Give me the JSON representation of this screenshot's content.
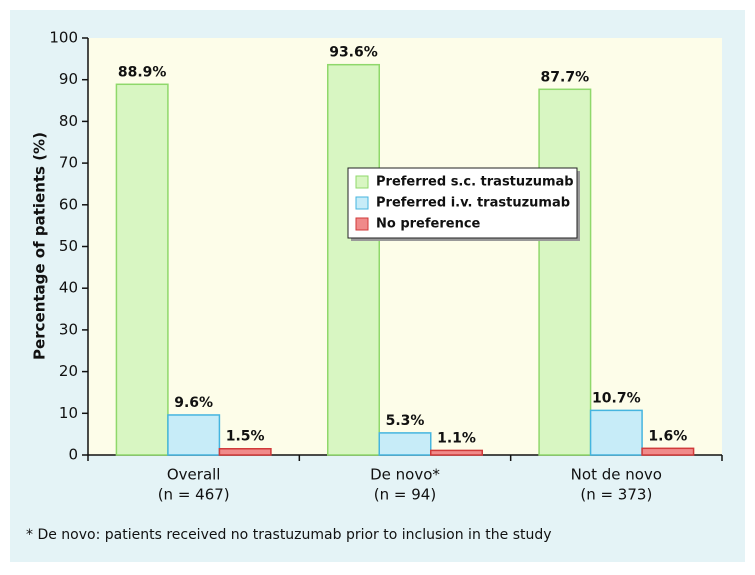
{
  "chart_data": {
    "type": "bar",
    "y_label": "Percentage of patients (%)",
    "categories": [
      "Overall",
      "De novo*",
      "Not de novo"
    ],
    "category_notes": [
      "(n = 467)",
      "(n = 94)",
      "(n = 373)"
    ],
    "series": [
      {
        "name": "Preferred s.c. trastuzumab",
        "color": "#d8f6c2",
        "values": [
          88.9,
          93.6,
          87.7
        ],
        "value_labels": [
          "88.9%",
          "93.6%",
          "87.7%"
        ]
      },
      {
        "name": "Preferred i.v. trastuzumab",
        "color": "#c7ecf8",
        "values": [
          9.6,
          5.3,
          10.7
        ],
        "value_labels": [
          "9.6%",
          "5.3%",
          "10.7%"
        ]
      },
      {
        "name": "No preference",
        "color": "#f08a8a",
        "values": [
          1.5,
          1.1,
          1.6
        ],
        "value_labels": [
          "1.5%",
          "1.1%",
          "1.6%"
        ]
      }
    ],
    "ylim": [
      0,
      100
    ],
    "yticks": [
      0,
      10,
      20,
      30,
      40,
      50,
      60,
      70,
      80,
      90,
      100
    ],
    "footnote": "* De novo: patients received no trastuzumab prior to inclusion in the study"
  }
}
